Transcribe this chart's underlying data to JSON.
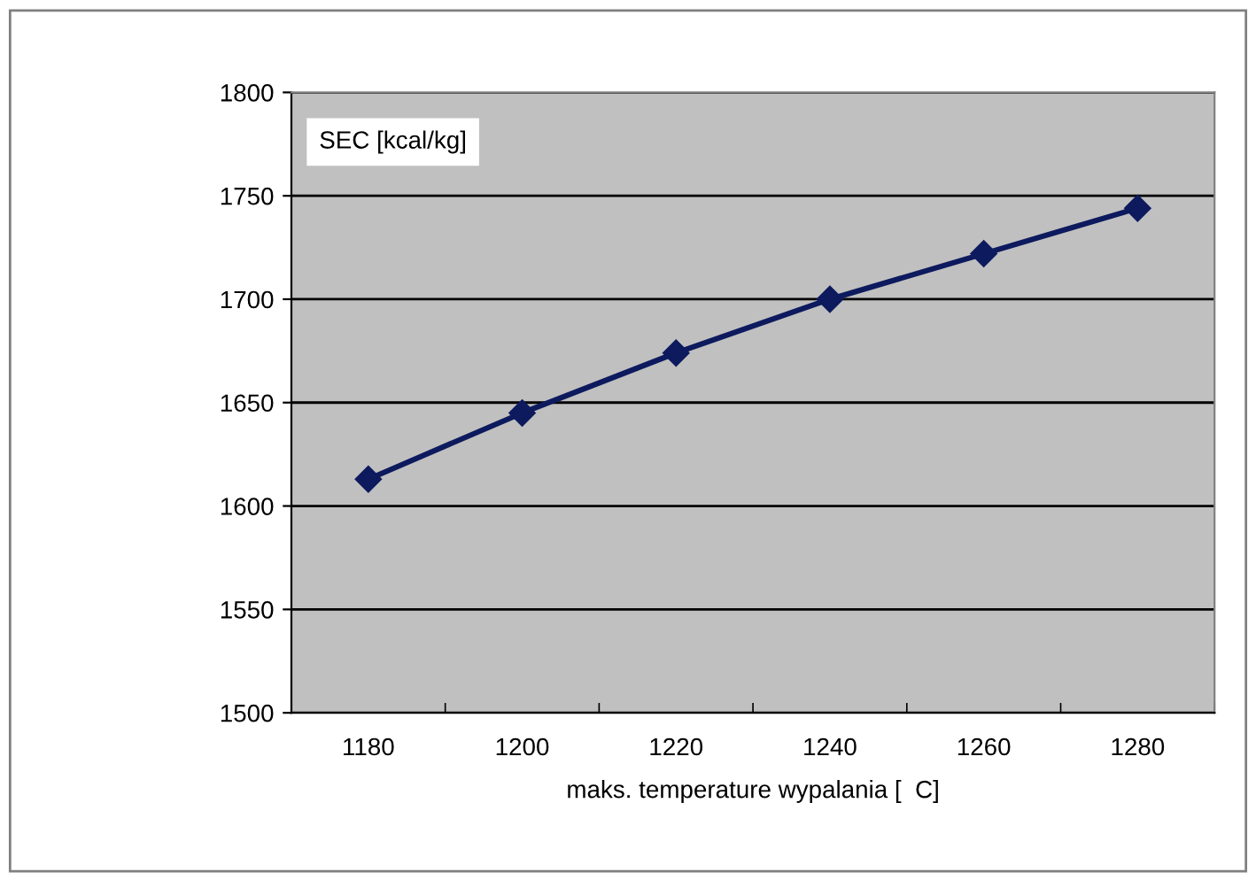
{
  "chart_data": {
    "type": "line",
    "ylabel": "SEC [kcal/kg]",
    "xlabel": "maks. temperature wypalania [  C]",
    "categories": [
      "1180",
      "1200",
      "1220",
      "1240",
      "1260",
      "1280"
    ],
    "series": [
      {
        "color": "#0d1a5e",
        "values": [
          1613,
          1645,
          1674,
          1700,
          1722,
          1744
        ]
      }
    ],
    "ylim": [
      1500,
      1800
    ],
    "yticks": [
      1500,
      1550,
      1600,
      1650,
      1700,
      1750,
      1800
    ],
    "grid": "y",
    "marker": "diamond",
    "line_style": "solid",
    "legend": false
  }
}
